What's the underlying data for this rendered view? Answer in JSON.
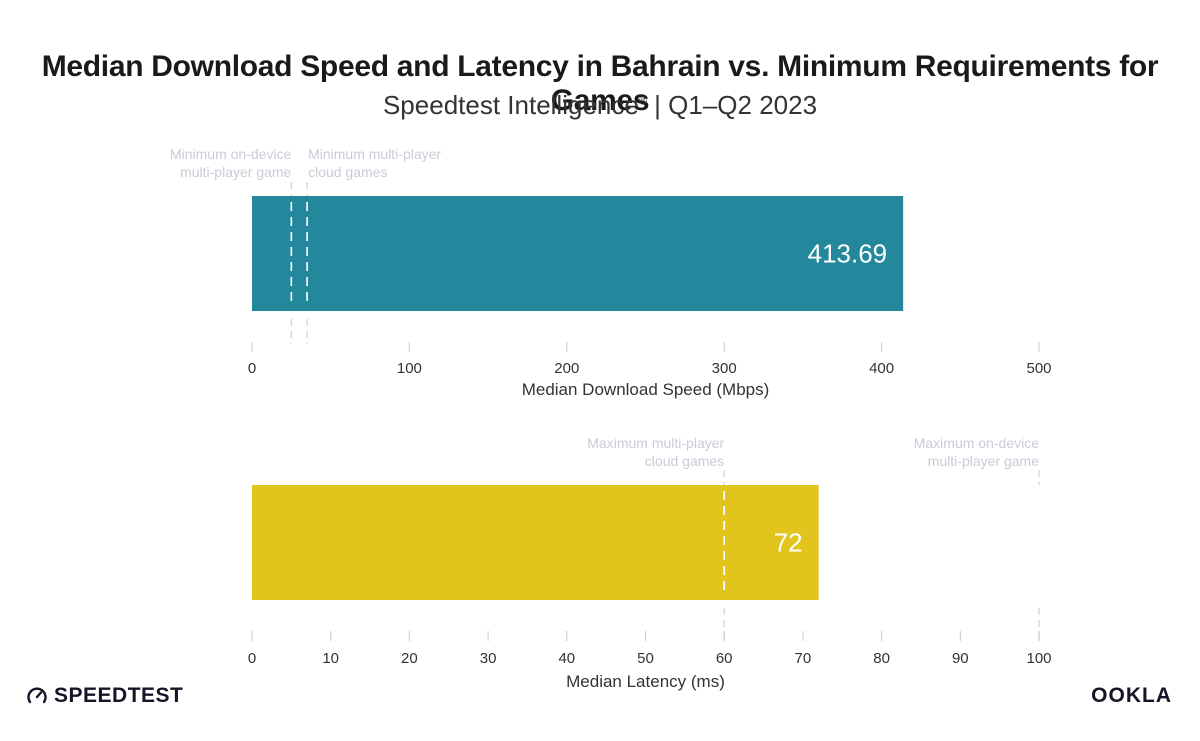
{
  "title": "Median Download Speed and Latency in Bahrain vs. Minimum Requirements for Games",
  "subtitle": {
    "main": "Speedtest Intelligence",
    "mark": "®",
    "period": " | Q1–Q2 2023"
  },
  "colors": {
    "download_bar": "#23889C",
    "latency_bar": "#E2C51C",
    "reference_line_light": "#FFFFFF",
    "reference_line_dark": "#D6D6DE",
    "reference_label": "#C9CBD6",
    "axis_text": "#333333"
  },
  "chart_data": [
    {
      "type": "bar",
      "orientation": "horizontal",
      "categories": [
        "Bahrain"
      ],
      "values": [
        413.69
      ],
      "value_labels": [
        "413.69"
      ],
      "xlabel": "Median Download Speed (Mbps)",
      "xlim": [
        0,
        500
      ],
      "ticks": [
        0,
        100,
        200,
        300,
        400,
        500
      ],
      "grid": false,
      "reference_lines": [
        {
          "value": 25,
          "label": [
            "Minimum on-device",
            "multi-player game"
          ]
        },
        {
          "value": 35,
          "label": [
            "Minimum multi-player",
            "cloud games"
          ]
        }
      ]
    },
    {
      "type": "bar",
      "orientation": "horizontal",
      "categories": [
        "Bahrain"
      ],
      "values": [
        72
      ],
      "value_labels": [
        "72"
      ],
      "xlabel": "Median Latency (ms)",
      "xlim": [
        0,
        100
      ],
      "ticks": [
        0,
        10,
        20,
        30,
        40,
        50,
        60,
        70,
        80,
        90,
        100
      ],
      "grid": false,
      "reference_lines": [
        {
          "value": 60,
          "label": [
            "Maximum multi-player",
            "cloud games"
          ]
        },
        {
          "value": 100,
          "label": [
            "Maximum on-device",
            "multi-player game"
          ]
        }
      ]
    }
  ],
  "footer": {
    "left_logo": "SPEEDTEST",
    "left_logo_icon": "speedometer-icon",
    "right_logo": "OOKLA"
  }
}
